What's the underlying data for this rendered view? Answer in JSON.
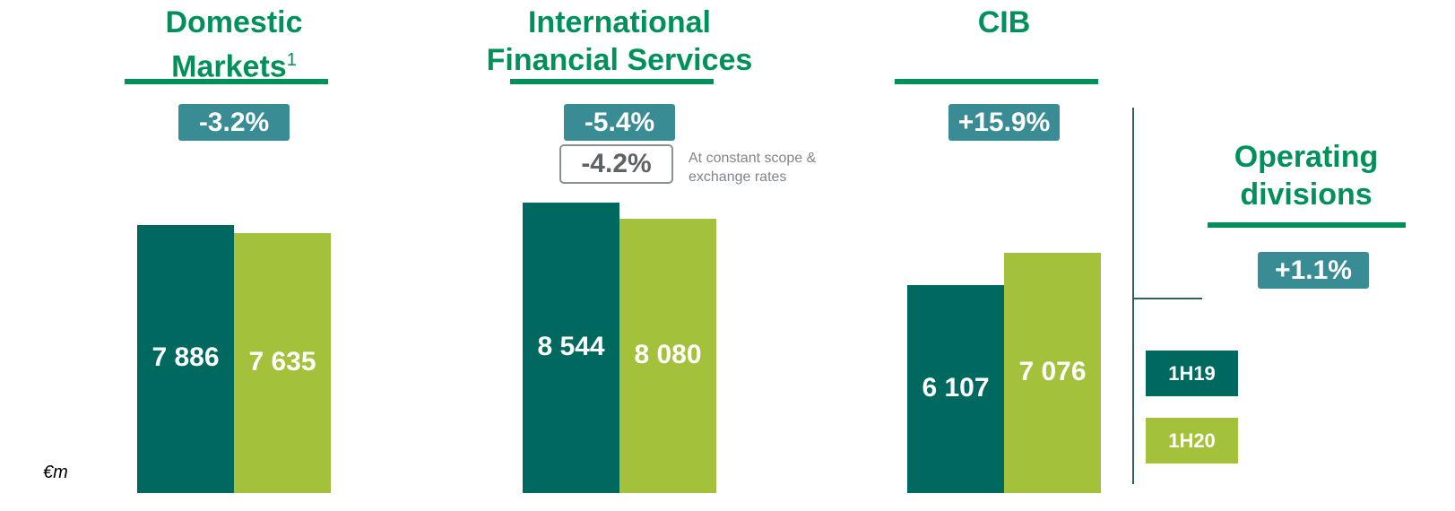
{
  "unit": "€m",
  "legend": [
    {
      "name": "1H19",
      "color": "#00695f"
    },
    {
      "name": "1H20",
      "color": "#a3c13a"
    }
  ],
  "chart_data": [
    {
      "type": "bar",
      "title": "Domestic Markets",
      "footnote": "1",
      "change": "-3.2%",
      "values": [
        7886,
        7635
      ],
      "value_labels": [
        "7 886",
        "7 635"
      ]
    },
    {
      "type": "bar",
      "title": "International Financial Services",
      "change": "-5.4%",
      "change_constant": "-4.2%",
      "note": "At constant scope & exchange rates",
      "values": [
        8544,
        8080
      ],
      "value_labels": [
        "8 544",
        "8 080"
      ]
    },
    {
      "type": "bar",
      "title": "CIB",
      "change": "+15.9%",
      "values": [
        6107,
        7076
      ],
      "value_labels": [
        "6 107",
        "7 076"
      ]
    }
  ],
  "total": {
    "title": "Operating divisions",
    "change": "+1.1%"
  }
}
